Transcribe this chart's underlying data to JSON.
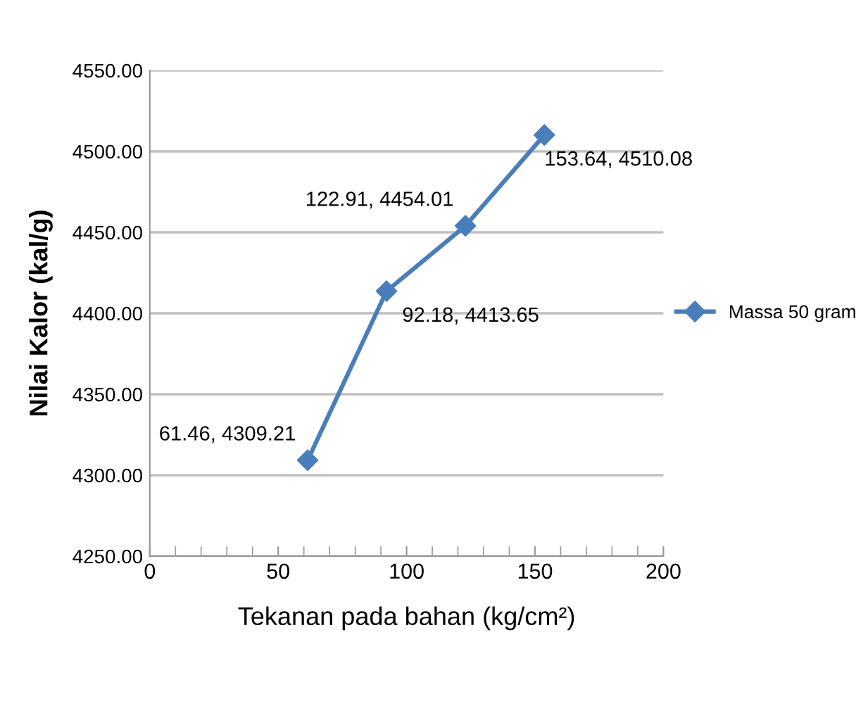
{
  "chart_data": {
    "type": "line",
    "xlabel": "Tekanan pada bahan (kg/cm²)",
    "ylabel": "Nilai Kalor (kal/g)",
    "x": [
      61.46,
      92.18,
      122.91,
      153.64
    ],
    "series": [
      {
        "name": "Massa 50 gram",
        "color": "#4a7ebb",
        "values": [
          4309.21,
          4413.65,
          4454.01,
          4510.08
        ]
      }
    ],
    "xlim": [
      0,
      200
    ],
    "xticks": [
      0,
      50,
      100,
      150,
      200
    ],
    "ylim": [
      4250,
      4550
    ],
    "yticks": [
      {
        "value": 4250,
        "label": "4250.00"
      },
      {
        "value": 4300,
        "label": "4300.00"
      },
      {
        "value": 4350,
        "label": "4350.00"
      },
      {
        "value": 4400,
        "label": "4400.00"
      },
      {
        "value": 4450,
        "label": "4450.00"
      },
      {
        "value": 4500,
        "label": "4500.00"
      },
      {
        "value": 4550,
        "label": "4550.00"
      }
    ],
    "grid": "y",
    "legend": "right",
    "marker": "diamond",
    "line_style": "solid",
    "annotations": [
      {
        "text": "61.46, 4309.21",
        "x": 61.46,
        "y": 4309.21
      },
      {
        "text": "92.18, 4413.65",
        "x": 92.18,
        "y": 4413.65
      },
      {
        "text": "122.91, 4454.01",
        "x": 122.91,
        "y": 4454.01
      },
      {
        "text": "153.64, 4510.08",
        "x": 153.64,
        "y": 4510.08
      }
    ]
  }
}
